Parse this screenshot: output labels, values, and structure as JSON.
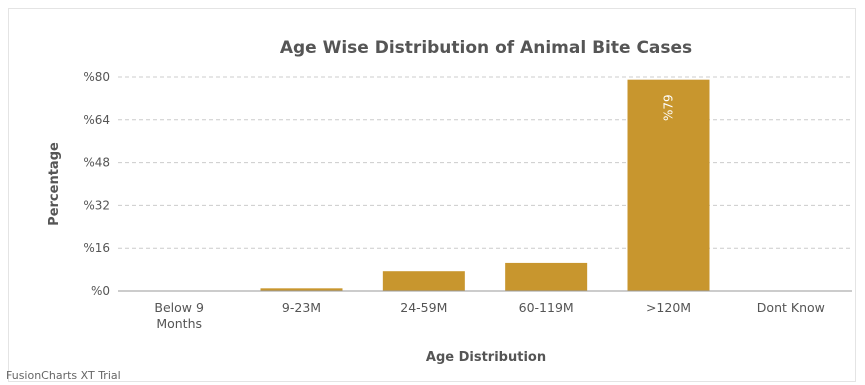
{
  "chart_data": {
    "type": "bar",
    "title": "Age Wise Distribution of Animal Bite Cases",
    "xlabel": "Age Distribution",
    "ylabel": "Percentage",
    "categories": [
      "Below 9 Months",
      "9-23M",
      "24-59M",
      "60-119M",
      ">120M",
      "Dont Know"
    ],
    "values": [
      0,
      1,
      7.4,
      10.5,
      79,
      0
    ],
    "value_labels": [
      "",
      "",
      "",
      "",
      "%79",
      ""
    ],
    "ylim": [
      0,
      80
    ],
    "yticks": [
      "%0",
      "%16",
      "%32",
      "%48",
      "%64",
      "%80"
    ],
    "grid": true,
    "bar_color": "#c8962e"
  },
  "watermark": "FusionCharts XT Trial"
}
